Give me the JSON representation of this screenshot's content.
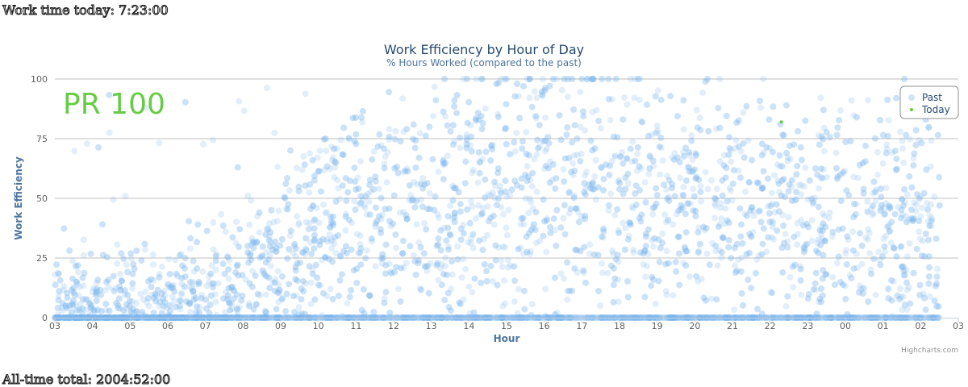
{
  "header": {
    "work_time_today": "Work time today: 7:23:00"
  },
  "footer": {
    "all_time_total": "All-time total: 2004:52:00"
  },
  "overlay": {
    "pr_label": "PR 100"
  },
  "credits": "Highcharts.com",
  "colors": {
    "past": "#7cb5ec",
    "today": "#66cc44",
    "grid": "#c0c0c0",
    "axis": "#c0d0e0"
  },
  "chart_data": {
    "type": "scatter",
    "title": "Work Efficiency by Hour of Day",
    "subtitle": "% Hours Worked (compared to the past)",
    "xlabel": "Hour",
    "ylabel": "Work Efficiency",
    "xlim": [
      3,
      27
    ],
    "ylim": [
      0,
      100
    ],
    "x_ticks": [
      "03",
      "04",
      "05",
      "06",
      "07",
      "08",
      "09",
      "10",
      "11",
      "12",
      "13",
      "14",
      "15",
      "16",
      "17",
      "18",
      "19",
      "20",
      "21",
      "22",
      "23",
      "00",
      "01",
      "02",
      "03"
    ],
    "y_ticks": [
      0,
      25,
      50,
      75,
      100
    ],
    "legend": {
      "position": "top-right",
      "entries": [
        "Past",
        "Today"
      ]
    },
    "series": [
      {
        "name": "Past",
        "note": "thousands of semi-transparent points; density summarized by hourly mean band",
        "hourly_mean_efficiency": [
          {
            "hour": "03",
            "mean": 3
          },
          {
            "hour": "04",
            "mean": 4
          },
          {
            "hour": "05",
            "mean": 5
          },
          {
            "hour": "06",
            "mean": 6
          },
          {
            "hour": "07",
            "mean": 10
          },
          {
            "hour": "08",
            "mean": 20
          },
          {
            "hour": "09",
            "mean": 30
          },
          {
            "hour": "10",
            "mean": 38
          },
          {
            "hour": "11",
            "mean": 42
          },
          {
            "hour": "12",
            "mean": 45
          },
          {
            "hour": "13",
            "mean": 48
          },
          {
            "hour": "14",
            "mean": 52
          },
          {
            "hour": "15",
            "mean": 54
          },
          {
            "hour": "16",
            "mean": 56
          },
          {
            "hour": "17",
            "mean": 57
          },
          {
            "hour": "18",
            "mean": 53
          },
          {
            "hour": "19",
            "mean": 49
          },
          {
            "hour": "20",
            "mean": 48
          },
          {
            "hour": "21",
            "mean": 45
          },
          {
            "hour": "22",
            "mean": 44
          },
          {
            "hour": "23",
            "mean": 40
          },
          {
            "hour": "00",
            "mean": 39
          },
          {
            "hour": "01",
            "mean": 40
          },
          {
            "hour": "02",
            "mean": 42
          }
        ]
      },
      {
        "name": "Today",
        "points": [
          {
            "x": 22.3,
            "y": 82
          }
        ]
      }
    ]
  }
}
